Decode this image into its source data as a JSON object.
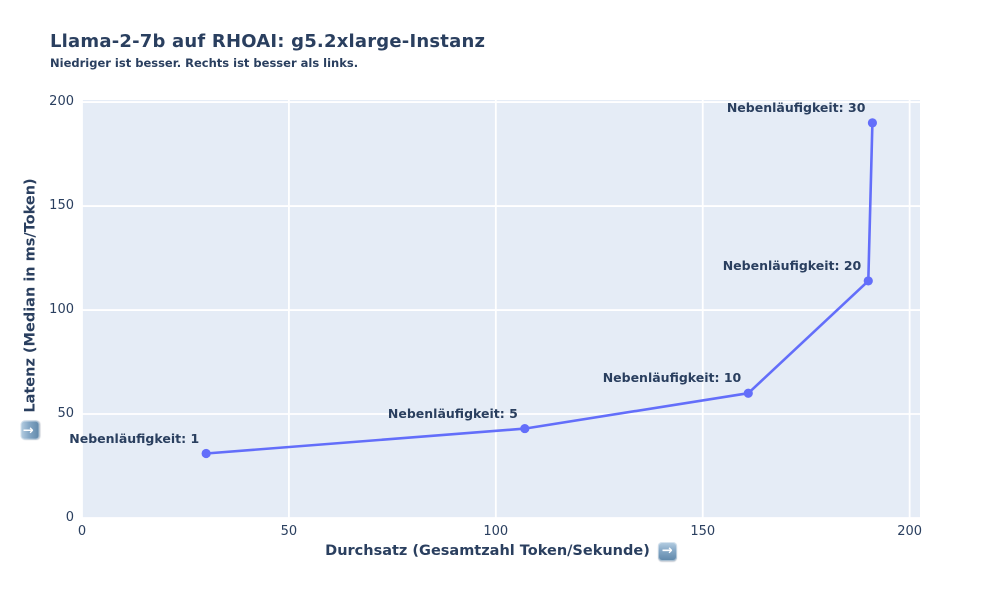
{
  "header": {
    "title": "Llama-2-7b auf RHOAI: g5.2xlarge-Instanz",
    "subtitle": "Niedriger ist besser. Rechts ist besser als links."
  },
  "chart_data": {
    "type": "line",
    "title": "Llama-2-7b auf RHOAI: g5.2xlarge-Instanz",
    "subtitle": "Niedriger ist besser. Rechts ist besser als links.",
    "xlabel": "Durchsatz (Gesamtzahl Token/Sekunde)",
    "ylabel": "Latenz (Median in ms/Token)",
    "xlabel_icon": "→",
    "ylabel_icon": "↓",
    "x_ticks": [
      0,
      50,
      100,
      150,
      200
    ],
    "y_ticks": [
      0,
      50,
      100,
      150,
      200
    ],
    "xlim": [
      0,
      202.5
    ],
    "ylim": [
      0,
      201
    ],
    "grid": true,
    "legend_position": "none",
    "series": [
      {
        "points": [
          {
            "label": "Nebenläufigkeit: 1",
            "x": 30,
            "y": 31
          },
          {
            "label": "Nebenläufigkeit: 5",
            "x": 107,
            "y": 43
          },
          {
            "label": "Nebenläufigkeit: 10",
            "x": 161,
            "y": 60
          },
          {
            "label": "Nebenläufigkeit: 20",
            "x": 190,
            "y": 114
          },
          {
            "label": "Nebenläufigkeit: 30",
            "x": 191,
            "y": 190
          }
        ]
      }
    ],
    "colors": {
      "line": "#636efa",
      "marker": "#636efa",
      "plot_background": "#e5ecf6",
      "gridline": "#ffffff",
      "text": "#2a3f5f",
      "paper_background": "#ffffff"
    }
  }
}
